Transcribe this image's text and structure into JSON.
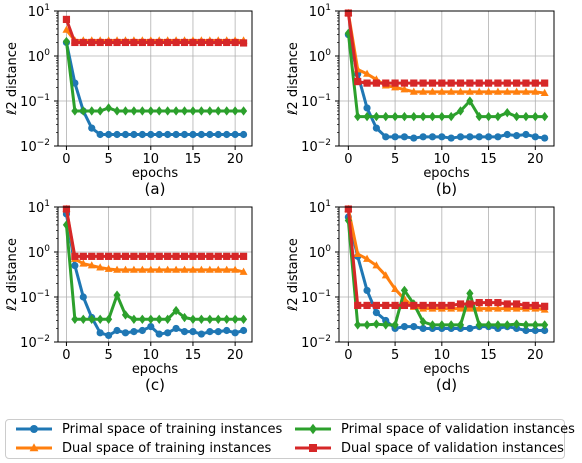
{
  "chart_data": [
    {
      "type": "line",
      "panel_label": "(a)",
      "xlabel": "epochs",
      "ylabel": "ℓ2 distance",
      "ylog": true,
      "ylim": [
        0.01,
        10
      ],
      "xlim": [
        -1,
        22
      ],
      "xticks": [
        "0",
        "5",
        "10",
        "15",
        "20"
      ],
      "yticks": [
        "10",
        "10",
        "10",
        "10"
      ],
      "ytick_exponents": [
        "1",
        "0",
        "−1",
        "−2"
      ],
      "x": [
        0,
        1,
        2,
        3,
        4,
        5,
        6,
        7,
        8,
        9,
        10,
        11,
        12,
        13,
        14,
        15,
        16,
        17,
        18,
        19,
        20,
        21
      ],
      "series": [
        {
          "key": "primal_train",
          "values": [
            2.0,
            0.25,
            0.06,
            0.025,
            0.018,
            0.018,
            0.018,
            0.018,
            0.018,
            0.018,
            0.018,
            0.018,
            0.018,
            0.018,
            0.018,
            0.018,
            0.018,
            0.018,
            0.018,
            0.018,
            0.018,
            0.018
          ]
        },
        {
          "key": "dual_train",
          "values": [
            3.8,
            2.2,
            2.2,
            2.2,
            2.2,
            2.2,
            2.2,
            2.2,
            2.2,
            2.2,
            2.2,
            2.2,
            2.2,
            2.2,
            2.2,
            2.2,
            2.2,
            2.2,
            2.2,
            2.2,
            2.2,
            2.2
          ]
        },
        {
          "key": "primal_val",
          "values": [
            2.1,
            0.06,
            0.06,
            0.06,
            0.06,
            0.07,
            0.06,
            0.06,
            0.06,
            0.06,
            0.06,
            0.06,
            0.06,
            0.06,
            0.06,
            0.06,
            0.06,
            0.06,
            0.06,
            0.06,
            0.06,
            0.06
          ]
        },
        {
          "key": "dual_val",
          "values": [
            6.5,
            2.0,
            2.0,
            2.0,
            2.0,
            2.0,
            2.0,
            2.0,
            2.0,
            2.0,
            2.0,
            2.0,
            2.0,
            2.0,
            2.0,
            2.0,
            2.0,
            2.0,
            2.0,
            2.0,
            2.0,
            1.95
          ]
        }
      ]
    },
    {
      "type": "line",
      "panel_label": "(b)",
      "xlabel": "epochs",
      "ylabel": "ℓ2 distance",
      "ylog": true,
      "ylim": [
        0.01,
        10
      ],
      "xlim": [
        -1,
        22
      ],
      "xticks": [
        "0",
        "5",
        "10",
        "15",
        "20"
      ],
      "yticks": [
        "10",
        "10",
        "10",
        "10"
      ],
      "ytick_exponents": [
        "1",
        "0",
        "−1",
        "−2"
      ],
      "x": [
        0,
        1,
        2,
        3,
        4,
        5,
        6,
        7,
        8,
        9,
        10,
        11,
        12,
        13,
        14,
        15,
        16,
        17,
        18,
        19,
        20,
        21
      ],
      "series": [
        {
          "key": "primal_train",
          "values": [
            3.0,
            0.4,
            0.07,
            0.025,
            0.016,
            0.016,
            0.016,
            0.015,
            0.016,
            0.016,
            0.016,
            0.015,
            0.016,
            0.016,
            0.016,
            0.016,
            0.016,
            0.018,
            0.017,
            0.018,
            0.016,
            0.015
          ]
        },
        {
          "key": "dual_train",
          "values": [
            9.0,
            0.5,
            0.4,
            0.3,
            0.22,
            0.2,
            0.18,
            0.16,
            0.16,
            0.16,
            0.16,
            0.16,
            0.16,
            0.16,
            0.16,
            0.16,
            0.16,
            0.16,
            0.16,
            0.16,
            0.16,
            0.15
          ]
        },
        {
          "key": "primal_val",
          "values": [
            3.2,
            0.045,
            0.045,
            0.045,
            0.045,
            0.045,
            0.045,
            0.045,
            0.045,
            0.045,
            0.045,
            0.045,
            0.06,
            0.1,
            0.045,
            0.045,
            0.045,
            0.055,
            0.045,
            0.045,
            0.045,
            0.045
          ]
        },
        {
          "key": "dual_val",
          "values": [
            9.0,
            0.27,
            0.25,
            0.25,
            0.25,
            0.25,
            0.25,
            0.25,
            0.25,
            0.25,
            0.25,
            0.25,
            0.25,
            0.25,
            0.25,
            0.25,
            0.25,
            0.25,
            0.25,
            0.25,
            0.25,
            0.25
          ]
        }
      ]
    },
    {
      "type": "line",
      "panel_label": "(c)",
      "xlabel": "epochs",
      "ylabel": "ℓ2 distance",
      "ylog": true,
      "ylim": [
        0.01,
        10
      ],
      "xlim": [
        -1,
        22
      ],
      "xticks": [
        "0",
        "5",
        "10",
        "15",
        "20"
      ],
      "yticks": [
        "10",
        "10",
        "10",
        "10"
      ],
      "ytick_exponents": [
        "1",
        "0",
        "−1",
        "−2"
      ],
      "x": [
        0,
        1,
        2,
        3,
        4,
        5,
        6,
        7,
        8,
        9,
        10,
        11,
        12,
        13,
        14,
        15,
        16,
        17,
        18,
        19,
        20,
        21
      ],
      "series": [
        {
          "key": "primal_train",
          "values": [
            7.0,
            0.5,
            0.1,
            0.035,
            0.016,
            0.014,
            0.018,
            0.016,
            0.017,
            0.018,
            0.022,
            0.015,
            0.016,
            0.02,
            0.017,
            0.017,
            0.015,
            0.017,
            0.017,
            0.018,
            0.016,
            0.018
          ]
        },
        {
          "key": "dual_train",
          "values": [
            9.0,
            0.7,
            0.55,
            0.5,
            0.45,
            0.42,
            0.4,
            0.4,
            0.4,
            0.4,
            0.4,
            0.4,
            0.4,
            0.4,
            0.4,
            0.4,
            0.4,
            0.4,
            0.4,
            0.4,
            0.4,
            0.36
          ]
        },
        {
          "key": "primal_val",
          "values": [
            4.0,
            0.032,
            0.032,
            0.032,
            0.032,
            0.032,
            0.11,
            0.04,
            0.032,
            0.032,
            0.032,
            0.032,
            0.032,
            0.05,
            0.035,
            0.032,
            0.032,
            0.032,
            0.032,
            0.032,
            0.032,
            0.032
          ]
        },
        {
          "key": "dual_val",
          "values": [
            9.0,
            0.8,
            0.8,
            0.8,
            0.8,
            0.8,
            0.8,
            0.8,
            0.8,
            0.8,
            0.8,
            0.8,
            0.8,
            0.8,
            0.8,
            0.8,
            0.8,
            0.8,
            0.8,
            0.8,
            0.8,
            0.8
          ]
        }
      ]
    },
    {
      "type": "line",
      "panel_label": "(d)",
      "xlabel": "epochs",
      "ylabel": "ℓ2 distance",
      "ylog": true,
      "ylim": [
        0.01,
        10
      ],
      "xlim": [
        -1,
        22
      ],
      "xticks": [
        "0",
        "5",
        "10",
        "15",
        "20"
      ],
      "yticks": [
        "10",
        "10",
        "10",
        "10"
      ],
      "ytick_exponents": [
        "1",
        "0",
        "−1",
        "−2"
      ],
      "x": [
        0,
        1,
        2,
        3,
        4,
        5,
        6,
        7,
        8,
        9,
        10,
        11,
        12,
        13,
        14,
        15,
        16,
        17,
        18,
        19,
        20,
        21
      ],
      "series": [
        {
          "key": "primal_train",
          "values": [
            6.0,
            0.8,
            0.14,
            0.045,
            0.03,
            0.02,
            0.022,
            0.022,
            0.02,
            0.02,
            0.02,
            0.02,
            0.02,
            0.02,
            0.022,
            0.022,
            0.02,
            0.022,
            0.02,
            0.018,
            0.018,
            0.018
          ]
        },
        {
          "key": "dual_train",
          "values": [
            9.0,
            0.9,
            0.7,
            0.5,
            0.3,
            0.15,
            0.09,
            0.06,
            0.055,
            0.055,
            0.055,
            0.055,
            0.055,
            0.055,
            0.055,
            0.055,
            0.055,
            0.055,
            0.055,
            0.055,
            0.055,
            0.052
          ]
        },
        {
          "key": "primal_val",
          "values": [
            5.0,
            0.024,
            0.024,
            0.025,
            0.024,
            0.024,
            0.14,
            0.07,
            0.028,
            0.024,
            0.024,
            0.024,
            0.024,
            0.12,
            0.024,
            0.024,
            0.024,
            0.024,
            0.025,
            0.024,
            0.024,
            0.024
          ]
        },
        {
          "key": "dual_val",
          "values": [
            9.0,
            0.065,
            0.065,
            0.065,
            0.065,
            0.065,
            0.065,
            0.065,
            0.065,
            0.065,
            0.065,
            0.065,
            0.07,
            0.07,
            0.075,
            0.075,
            0.075,
            0.07,
            0.07,
            0.065,
            0.065,
            0.062
          ]
        }
      ]
    }
  ],
  "legend": {
    "primal_train": {
      "label": "Primal space of training instances",
      "color": "#1f77b4",
      "marker": "circle"
    },
    "dual_train": {
      "label": "Dual space of training instances",
      "color": "#ff7f0e",
      "marker": "triangle"
    },
    "primal_val": {
      "label": "Primal space of validation instances",
      "color": "#2ca02c",
      "marker": "diamond"
    },
    "dual_val": {
      "label": "Dual space of validation instances",
      "color": "#d62728",
      "marker": "square"
    }
  },
  "legend_order": [
    "primal_train",
    "dual_train",
    "primal_val",
    "dual_val"
  ],
  "grid": true
}
